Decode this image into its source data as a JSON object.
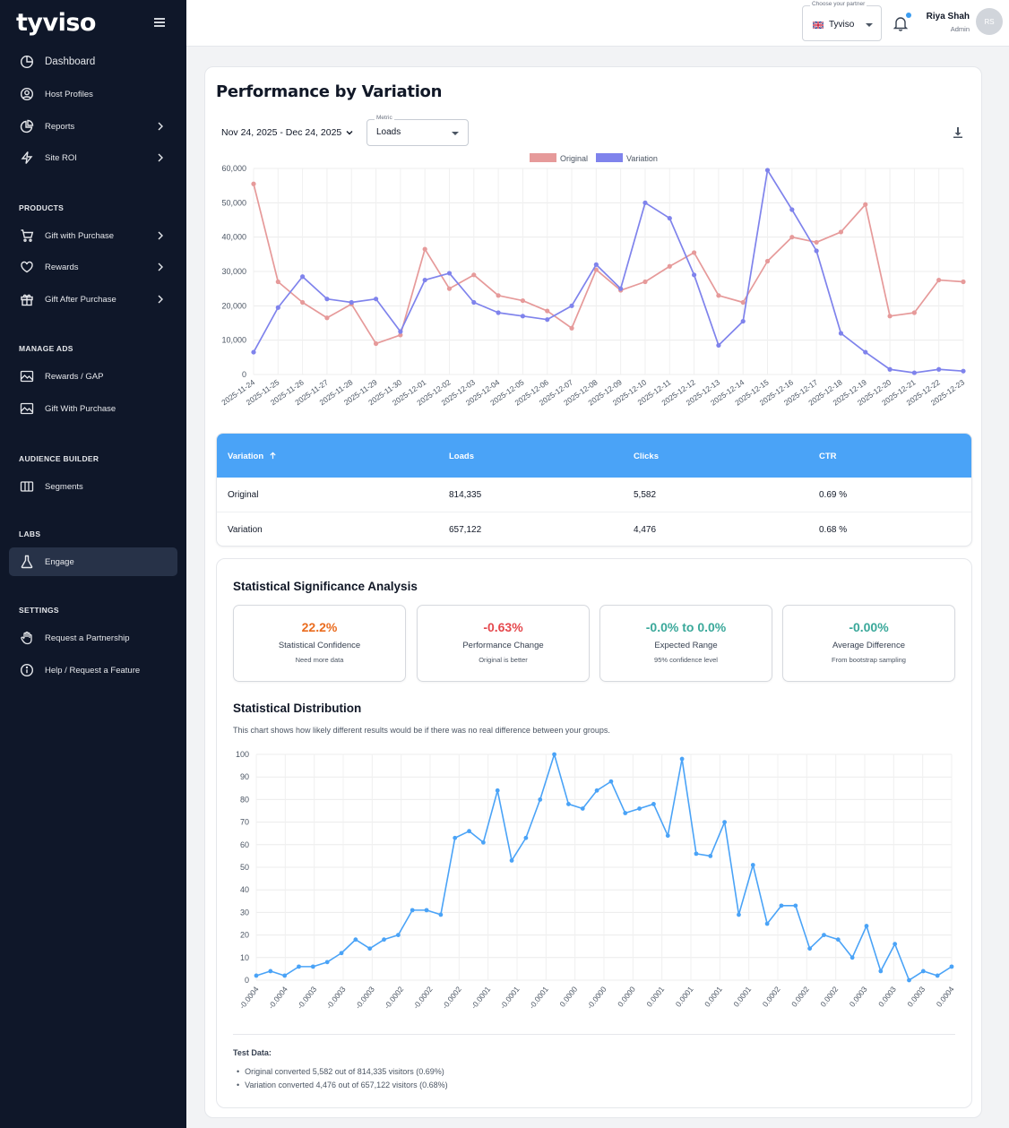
{
  "app": {
    "logo": "tyviso"
  },
  "sidebar": {
    "items_top": [
      {
        "label": "Dashboard",
        "icon": "pie-chart-icon",
        "chevron": false
      },
      {
        "label": "Host Profiles",
        "icon": "user-circle-icon",
        "chevron": false
      },
      {
        "label": "Reports",
        "icon": "report-pie-icon",
        "chevron": true
      },
      {
        "label": "Site ROI",
        "icon": "lightning-icon",
        "chevron": true
      }
    ],
    "products_title": "PRODUCTS",
    "products": [
      {
        "label": "Gift with Purchase",
        "icon": "cart-icon",
        "chevron": true
      },
      {
        "label": "Rewards",
        "icon": "heart-icon",
        "chevron": true
      },
      {
        "label": "Gift After Purchase",
        "icon": "gift-icon",
        "chevron": true
      }
    ],
    "manage_ads_title": "MANAGE ADS",
    "manage_ads": [
      {
        "label": "Rewards / GAP",
        "icon": "image-icon"
      },
      {
        "label": "Gift With Purchase",
        "icon": "image-icon"
      }
    ],
    "audience_title": "AUDIENCE BUILDER",
    "audience": [
      {
        "label": "Segments",
        "icon": "columns-icon"
      }
    ],
    "labs_title": "LABS",
    "labs": [
      {
        "label": "Engage",
        "icon": "flask-icon"
      }
    ],
    "settings_title": "SETTINGS",
    "settings": [
      {
        "label": "Request a Partnership",
        "icon": "hand-icon"
      },
      {
        "label": "Help / Request a Feature",
        "icon": "info-icon"
      }
    ]
  },
  "topbar": {
    "partner_label": "Choose your partner",
    "partner_value": "Tyviso",
    "user_name": "Riya Shah",
    "user_role": "Admin",
    "avatar_initials": "RS"
  },
  "performance": {
    "title": "Performance by Variation",
    "date_range": "Nov 24, 2025 - Dec 24, 2025",
    "metric_label": "Metric",
    "metric_value": "Loads"
  },
  "chart_data": [
    {
      "type": "line",
      "title": "",
      "x": [
        "2025-11-24",
        "2025-11-25",
        "2025-11-26",
        "2025-11-27",
        "2025-11-28",
        "2025-11-29",
        "2025-11-30",
        "2025-12-01",
        "2025-12-02",
        "2025-12-03",
        "2025-12-04",
        "2025-12-05",
        "2025-12-06",
        "2025-12-07",
        "2025-12-08",
        "2025-12-09",
        "2025-12-10",
        "2025-12-11",
        "2025-12-12",
        "2025-12-13",
        "2025-12-14",
        "2025-12-15",
        "2025-12-16",
        "2025-12-17",
        "2025-12-18",
        "2025-12-19",
        "2025-12-20",
        "2025-12-21",
        "2025-12-22",
        "2025-12-23"
      ],
      "yticks": [
        "0",
        "10,000",
        "20,000",
        "30,000",
        "40,000",
        "50,000",
        "60,000"
      ],
      "ylim": [
        0,
        60000
      ],
      "legend": "top-center",
      "series": [
        {
          "name": "Original",
          "color": "#e69a9a",
          "values": [
            55500,
            27000,
            21000,
            16500,
            20500,
            9000,
            11500,
            36500,
            25000,
            29000,
            23000,
            21500,
            18500,
            13500,
            30500,
            24500,
            27000,
            31500,
            35500,
            23000,
            21000,
            33000,
            40000,
            38500,
            41500,
            49500,
            17000,
            18000,
            27500,
            27000
          ]
        },
        {
          "name": "Variation",
          "color": "#7f83ec",
          "values": [
            6500,
            19500,
            28500,
            22000,
            21000,
            22000,
            12500,
            27500,
            29500,
            21000,
            18000,
            17000,
            16000,
            20000,
            32000,
            25000,
            50000,
            45500,
            29000,
            8500,
            15500,
            59500,
            48000,
            36000,
            12000,
            6500,
            1500,
            500,
            1500,
            1000
          ]
        }
      ]
    },
    {
      "type": "line",
      "title": "",
      "xticks": [
        "-0.0004",
        "-0.0004",
        "-0.0003",
        "-0.0003",
        "-0.0003",
        "-0.0002",
        "-0.0002",
        "-0.0002",
        "-0.0001",
        "-0.0001",
        "-0.0001",
        "0.0000",
        "-0.0000",
        "0.0000",
        "0.0001",
        "0.0001",
        "0.0001",
        "0.0001",
        "0.0002",
        "0.0002",
        "0.0002",
        "0.0003",
        "0.0003",
        "0.0003",
        "0.0004"
      ],
      "yticks": [
        "0",
        "10",
        "20",
        "30",
        "40",
        "50",
        "60",
        "70",
        "80",
        "90",
        "100"
      ],
      "ylim": [
        0,
        100
      ],
      "color": "#4aa3f7",
      "values": [
        2,
        4,
        2,
        6,
        6,
        8,
        12,
        18,
        14,
        18,
        20,
        31,
        31,
        29,
        63,
        66,
        61,
        84,
        53,
        63,
        80,
        100,
        78,
        76,
        84,
        88,
        74,
        76,
        78,
        64,
        98,
        56,
        55,
        70,
        29,
        51,
        25,
        33,
        33,
        14,
        20,
        18,
        10,
        24,
        4,
        16,
        0,
        4,
        2,
        6
      ]
    }
  ],
  "table": {
    "headers": {
      "variation": "Variation",
      "loads": "Loads",
      "clicks": "Clicks",
      "ctr": "CTR"
    },
    "rows": [
      {
        "variation": "Original",
        "loads": "814,335",
        "clicks": "5,582",
        "ctr": "0.69 %"
      },
      {
        "variation": "Variation",
        "loads": "657,122",
        "clicks": "4,476",
        "ctr": "0.68 %"
      }
    ]
  },
  "stats": {
    "title": "Statistical Significance Analysis",
    "cards": [
      {
        "value": "22.2%",
        "label": "Statistical Confidence",
        "sub": "Need more data",
        "color": "#ea6c1f"
      },
      {
        "value": "-0.63%",
        "label": "Performance Change",
        "sub": "Original is better",
        "color": "#e5484d"
      },
      {
        "value": "-0.0% to 0.0%",
        "label": "Expected Range",
        "sub": "95% confidence level",
        "color": "#3aa89a"
      },
      {
        "value": "-0.00%",
        "label": "Average Difference",
        "sub": "From bootstrap sampling",
        "color": "#3aa89a"
      }
    ],
    "dist_title": "Statistical Distribution",
    "dist_desc": "This chart shows how likely different results would be if there was no real difference between your groups.",
    "test_title": "Test Data:",
    "test_lines": [
      "Original converted 5,582 out of 814,335 visitors (0.69%)",
      "Variation converted 4,476 out of 657,122 visitors (0.68%)"
    ]
  }
}
